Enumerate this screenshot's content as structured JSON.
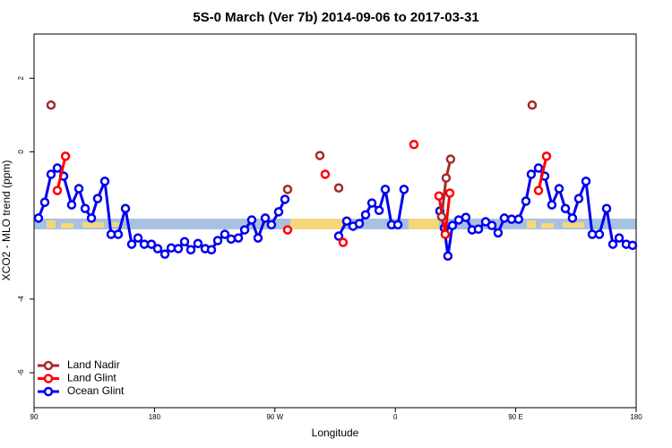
{
  "chart_data": {
    "type": "line",
    "title": "5S-0 March (Ver 7b)   2014-09-06 to 2017-03-31",
    "x_label": "Longitude",
    "y_label": "XCO2 - MLO trend (ppm)",
    "xlim": [
      90,
      540
    ],
    "ylim": [
      -6.95,
      3.2
    ],
    "xticks": [
      90,
      180,
      {
        "value": 270,
        "label": "90 W"
      },
      {
        "value": 360,
        "label": "0"
      },
      {
        "value": 450,
        "label": "90 E"
      },
      {
        "value": 540,
        "label": "180"
      }
    ],
    "yticks": [
      -6,
      -4,
      0,
      2
    ],
    "legend": "bottom-left",
    "series": [
      {
        "name": "Land Nadir",
        "color": "#a52a2a",
        "x": [
          102.7,
          null,
          279.5,
          null,
          303.6,
          null,
          317.7,
          null,
          394.6,
          398.0,
          401.3,
          null,
          462.3
        ],
        "values": [
          1.27,
          null,
          -1.02,
          null,
          -0.1,
          null,
          -0.98,
          null,
          -1.76,
          -0.71,
          -0.2,
          null,
          1.27
        ]
      },
      {
        "name": "Land Glint",
        "color": "#ff0000",
        "x": [
          107.4,
          113.5,
          null,
          279.5,
          null,
          307.6,
          null,
          321.0,
          null,
          373.9,
          null,
          392.6,
          397.3,
          400.7,
          null,
          467.0,
          473.0
        ],
        "values": [
          -1.05,
          -0.12,
          null,
          -2.12,
          null,
          -0.61,
          null,
          -2.46,
          null,
          0.2,
          null,
          -1.2,
          -2.24,
          -1.12,
          null,
          -1.05,
          -0.12
        ]
      },
      {
        "name": "Ocean Glint",
        "color": "#0000ee",
        "x": [
          93.3,
          98.0,
          102.7,
          107.4,
          112.1,
          118.1,
          123.5,
          128.2,
          132.9,
          137.5,
          142.9,
          147.6,
          152.9,
          158.3,
          163.0,
          167.7,
          172.4,
          177.7,
          182.4,
          187.8,
          192.5,
          197.8,
          202.5,
          207.2,
          212.5,
          217.9,
          222.6,
          227.3,
          232.6,
          237.3,
          242.7,
          247.4,
          252.7,
          257.4,
          262.8,
          267.4,
          272.8,
          277.5,
          null,
          317.7,
          323.7,
          328.4,
          333.1,
          337.8,
          342.5,
          347.9,
          352.5,
          357.2,
          361.9,
          366.5,
          null,
          393.3,
          396.7,
          399.3,
          402.7,
          407.4,
          412.7,
          417.4,
          422.1,
          427.5,
          432.2,
          436.8,
          441.5,
          446.9,
          452.2,
          457.6,
          461.6,
          467.0,
          471.7,
          477.0,
          482.4,
          487.1,
          492.4,
          497.1,
          502.5,
          507.2,
          512.5,
          517.9,
          522.6,
          527.3,
          532.6,
          537.3
        ],
        "values": [
          -1.8,
          -1.37,
          -0.61,
          -0.44,
          -0.66,
          -1.44,
          -1.0,
          -1.54,
          -1.8,
          -1.27,
          -0.8,
          -2.24,
          -2.24,
          -1.54,
          -2.51,
          -2.34,
          -2.51,
          -2.51,
          -2.63,
          -2.78,
          -2.61,
          -2.63,
          -2.44,
          -2.66,
          -2.49,
          -2.63,
          -2.66,
          -2.41,
          -2.24,
          -2.37,
          -2.34,
          -2.12,
          -1.85,
          -2.34,
          -1.8,
          -1.98,
          -1.63,
          -1.29,
          null,
          -2.29,
          -1.88,
          -2.02,
          -1.95,
          -1.71,
          -1.39,
          -1.59,
          -1.02,
          -1.98,
          -1.98,
          -1.02,
          null,
          -1.61,
          -2.07,
          -2.83,
          -2.0,
          -1.85,
          -1.78,
          -2.12,
          -2.1,
          -1.9,
          -2.0,
          -2.2,
          -1.8,
          -1.83,
          -1.83,
          -1.34,
          -0.61,
          -0.44,
          -0.66,
          -1.44,
          -1.0,
          -1.54,
          -1.8,
          -1.27,
          -0.8,
          -2.24,
          -2.24,
          -1.54,
          -2.51,
          -2.34,
          -2.51,
          -2.54
        ]
      }
    ]
  }
}
